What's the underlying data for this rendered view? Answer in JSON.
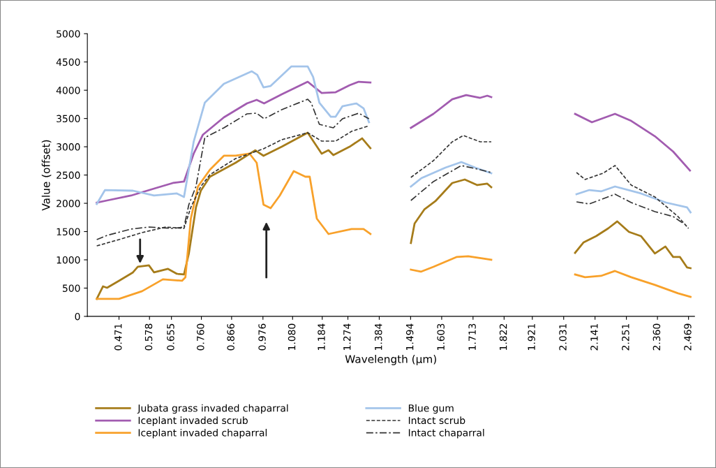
{
  "chart_data": {
    "type": "line",
    "xlabel": "Wavelength (µm)",
    "ylabel": "Value (offset)",
    "xlim": [
      0.36,
      2.49
    ],
    "ylim": [
      0,
      5000
    ],
    "xticks": [
      {
        "value": 0.471,
        "label": "0.471"
      },
      {
        "value": 0.578,
        "label": "0.578"
      },
      {
        "value": 0.655,
        "label": "0.655"
      },
      {
        "value": 0.76,
        "label": "0.760"
      },
      {
        "value": 0.866,
        "label": "0.866"
      },
      {
        "value": 0.976,
        "label": "0.976"
      },
      {
        "value": 1.08,
        "label": "1.080"
      },
      {
        "value": 1.184,
        "label": "1.184"
      },
      {
        "value": 1.274,
        "label": "1.274"
      },
      {
        "value": 1.384,
        "label": "1.384"
      },
      {
        "value": 1.494,
        "label": "1.494"
      },
      {
        "value": 1.603,
        "label": "1.603"
      },
      {
        "value": 1.713,
        "label": "1.713"
      },
      {
        "value": 1.822,
        "label": "1.822"
      },
      {
        "value": 1.921,
        "label": "1.921"
      },
      {
        "value": 2.031,
        "label": "2.031"
      },
      {
        "value": 2.141,
        "label": "2.141"
      },
      {
        "value": 2.251,
        "label": "2.251"
      },
      {
        "value": 2.36,
        "label": "2.360"
      },
      {
        "value": 2.469,
        "label": "2.469"
      }
    ],
    "yticks": [
      0,
      500,
      1000,
      1500,
      2000,
      2500,
      3000,
      3500,
      4000,
      4500,
      5000
    ],
    "grid": false,
    "legend": "bottom",
    "marker": "none",
    "series": [
      {
        "name": "Jubata grass invaded chaparral",
        "color": "#a67c1a",
        "line_style": "solid",
        "x": [
          0.393,
          0.415,
          0.429,
          0.471,
          0.52,
          0.537,
          0.576,
          0.594,
          0.643,
          0.674,
          0.699,
          0.716,
          0.741,
          0.758,
          0.79,
          0.88,
          0.949,
          0.978,
          1.042,
          1.133,
          1.182,
          1.206,
          1.223,
          1.28,
          1.324,
          1.353,
          1.42,
          1.495,
          1.508,
          1.542,
          1.581,
          1.64,
          1.684,
          1.728,
          1.763,
          1.777,
          1.92,
          2.071,
          2.101,
          2.145,
          2.187,
          2.219,
          2.26,
          2.302,
          2.351,
          2.388,
          2.415,
          2.439,
          2.464,
          2.476
        ],
        "values": [
          309,
          531,
          506,
          630,
          778,
          877,
          902,
          778,
          840,
          753,
          741,
          1112,
          1927,
          2223,
          2470,
          2717,
          2939,
          2841,
          3001,
          3248,
          2878,
          2939,
          2853,
          3001,
          3149,
          2976,
          null,
          1297,
          1643,
          1890,
          2038,
          2359,
          2421,
          2322,
          2347,
          2285,
          null,
          1124,
          1309,
          1420,
          1556,
          1680,
          1494,
          1420,
          1112,
          1235,
          1050,
          1050,
          865,
          852
        ]
      },
      {
        "name": "Iceplant invaded scrub",
        "color": "#a25cb0",
        "line_style": "solid",
        "x": [
          0.393,
          0.429,
          0.513,
          0.594,
          0.66,
          0.699,
          0.733,
          0.765,
          0.839,
          0.92,
          0.954,
          0.98,
          1.042,
          1.133,
          1.182,
          1.231,
          1.28,
          1.312,
          1.353,
          1.42,
          1.495,
          1.574,
          1.64,
          1.689,
          1.738,
          1.763,
          1.777,
          1.92,
          2.071,
          2.13,
          2.211,
          2.268,
          2.351,
          2.415,
          2.474
        ],
        "values": [
          2013,
          2050,
          2137,
          2260,
          2359,
          2384,
          2878,
          3211,
          3520,
          3767,
          3829,
          3767,
          3927,
          4150,
          3952,
          3964,
          4088,
          4150,
          4137,
          null,
          3335,
          3582,
          3841,
          3915,
          3866,
          3903,
          3878,
          null,
          3582,
          3433,
          3582,
          3458,
          3186,
          2915,
          2581
        ]
      },
      {
        "name": "Iceplant invaded chaparral",
        "color": "#f8a12a",
        "line_style": "solid",
        "x": [
          0.393,
          0.471,
          0.552,
          0.625,
          0.692,
          0.704,
          0.723,
          0.748,
          0.79,
          0.839,
          0.88,
          0.929,
          0.954,
          0.978,
          1.003,
          1.035,
          1.084,
          1.125,
          1.14,
          1.165,
          1.206,
          1.287,
          1.329,
          1.353,
          1.42,
          1.495,
          1.53,
          1.574,
          1.655,
          1.696,
          1.745,
          1.777,
          1.92,
          2.071,
          2.106,
          2.162,
          2.211,
          2.268,
          2.351,
          2.432,
          2.476
        ],
        "values": [
          309,
          309,
          445,
          655,
          630,
          692,
          1729,
          2297,
          2594,
          2841,
          2841,
          2878,
          2717,
          1976,
          1914,
          2137,
          2569,
          2470,
          2470,
          1729,
          1457,
          1544,
          1544,
          1457,
          null,
          827,
          790,
          877,
          1050,
          1062,
          1025,
          1000,
          null,
          741,
          692,
          716,
          803,
          692,
          556,
          408,
          346
        ]
      },
      {
        "name": "Blue gum",
        "color": "#a3c4ea",
        "line_style": "solid",
        "x": [
          0.393,
          0.422,
          0.52,
          0.594,
          0.674,
          0.699,
          0.733,
          0.772,
          0.839,
          0.937,
          0.956,
          0.978,
          1.003,
          1.076,
          1.133,
          1.152,
          1.174,
          1.214,
          1.231,
          1.255,
          1.304,
          1.329,
          1.348,
          1.42,
          1.495,
          1.532,
          1.616,
          1.672,
          1.721,
          1.777,
          1.92,
          2.076,
          2.121,
          2.162,
          2.211,
          2.302,
          2.39,
          2.464,
          2.476
        ],
        "values": [
          1988,
          2235,
          2223,
          2137,
          2174,
          2112,
          3088,
          3779,
          4113,
          4335,
          4273,
          4051,
          4076,
          4421,
          4421,
          4236,
          3779,
          3532,
          3532,
          3717,
          3767,
          3680,
          3433,
          null,
          2297,
          2445,
          2631,
          2729,
          2631,
          2532,
          null,
          2161,
          2235,
          2211,
          2297,
          2174,
          2013,
          1927,
          1840
        ]
      },
      {
        "name": "Intact scrub",
        "color": "#333333",
        "line_style": "dashed",
        "x": [
          0.393,
          0.471,
          0.552,
          0.635,
          0.699,
          0.723,
          0.758,
          0.79,
          0.88,
          0.978,
          1.042,
          1.133,
          1.182,
          1.231,
          1.287,
          1.348,
          1.42,
          1.495,
          1.574,
          1.64,
          1.679,
          1.738,
          1.777,
          1.92,
          2.076,
          2.106,
          2.169,
          2.211,
          2.268,
          2.351,
          2.432,
          2.469
        ],
        "values": [
          1247,
          1358,
          1482,
          1580,
          1556,
          1927,
          2297,
          2507,
          2791,
          2964,
          3125,
          3248,
          3100,
          3100,
          3273,
          3372,
          null,
          2458,
          2754,
          3088,
          3199,
          3088,
          3088,
          null,
          2544,
          2421,
          2532,
          2668,
          2322,
          2112,
          1766,
          1556
        ]
      },
      {
        "name": "Intact chaparral",
        "color": "#333333",
        "line_style": "dashdot",
        "x": [
          0.393,
          0.429,
          0.513,
          0.576,
          0.66,
          0.699,
          0.716,
          0.741,
          0.772,
          0.839,
          0.92,
          0.954,
          0.98,
          1.042,
          1.133,
          1.145,
          1.174,
          1.223,
          1.255,
          1.312,
          1.348,
          1.42,
          1.495,
          1.574,
          1.672,
          1.738,
          1.777,
          1.92,
          2.076,
          2.121,
          2.211,
          2.268,
          2.351,
          2.415,
          2.451
        ],
        "values": [
          1358,
          1432,
          1544,
          1580,
          1556,
          1580,
          1976,
          2297,
          3162,
          3335,
          3582,
          3594,
          3495,
          3656,
          3841,
          3779,
          3396,
          3335,
          3495,
          3594,
          3495,
          null,
          2050,
          2384,
          2668,
          2594,
          2544,
          null,
          2025,
          1988,
          2161,
          2013,
          1853,
          1766,
          1643
        ]
      }
    ]
  }
}
